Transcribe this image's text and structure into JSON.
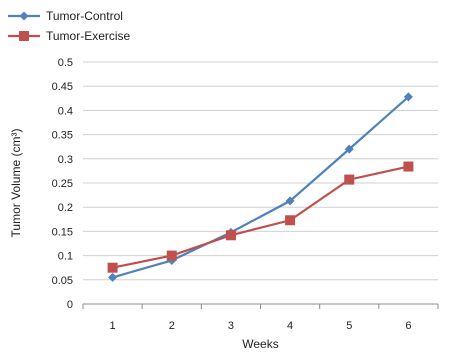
{
  "chart_data": {
    "type": "line",
    "title": "",
    "xlabel": "Weeks",
    "ylabel": "Tumor Volume (cm³)",
    "categories": [
      "1",
      "2",
      "3",
      "4",
      "5",
      "6"
    ],
    "ylim": [
      0,
      0.5
    ],
    "yticks": [
      "0",
      "0.05",
      "0.1",
      "0.15",
      "0.2",
      "0.25",
      "0.3",
      "0.35",
      "0.4",
      "0.45",
      "0.5"
    ],
    "grid": true,
    "legend_position": "top-left",
    "series": [
      {
        "name": "Tumor-Control",
        "color": "#4f81bd",
        "marker": "diamond",
        "values": [
          0.055,
          0.09,
          0.148,
          0.213,
          0.32,
          0.428
        ]
      },
      {
        "name": "Tumor-Exercise",
        "color": "#c0504d",
        "marker": "square",
        "values": [
          0.075,
          0.1,
          0.142,
          0.173,
          0.257,
          0.284
        ]
      }
    ]
  }
}
